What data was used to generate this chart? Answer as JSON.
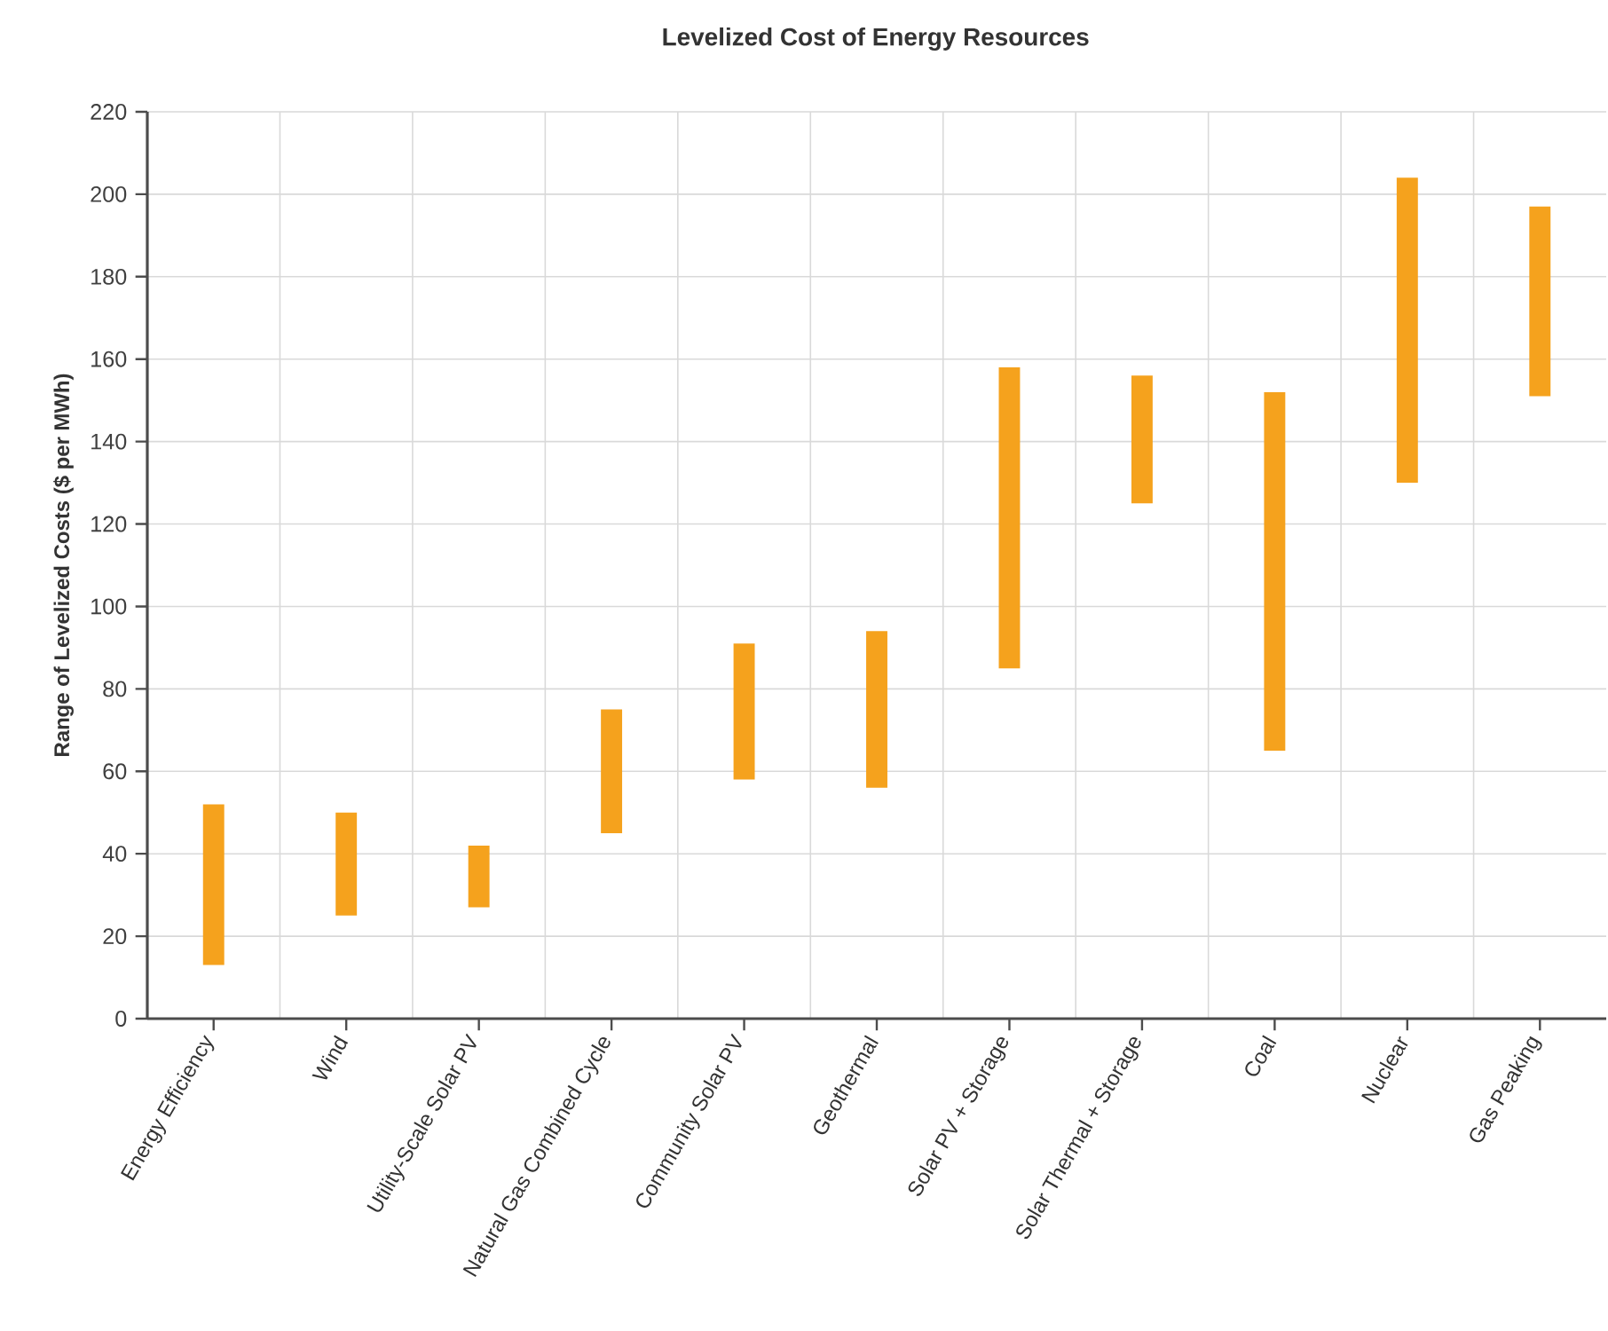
{
  "chart_data": {
    "type": "bar",
    "title": "Levelized Cost of Energy Resources",
    "ylabel": "Range of Levelized Costs ($ per MWh)",
    "categories": [
      "Energy Efficiency",
      "Wind",
      "Utility-Scale Solar PV",
      "Natural Gas Combined Cycle",
      "Community Solar PV",
      "Geothermal",
      "Solar PV + Storage",
      "Solar Thermal + Storage",
      "Coal",
      "Nuclear",
      "Gas Peaking"
    ],
    "base": [
      13,
      25,
      27,
      45,
      58,
      56,
      85,
      125,
      65,
      130,
      151
    ],
    "values": [
      39,
      25,
      15,
      30,
      33,
      38,
      73,
      31,
      87,
      74,
      46
    ],
    "color": "#f5a21d",
    "ylim": [
      0,
      220
    ],
    "yticks": [
      0,
      20,
      40,
      60,
      80,
      100,
      120,
      140,
      160,
      180,
      200,
      220
    ],
    "grid": true
  }
}
